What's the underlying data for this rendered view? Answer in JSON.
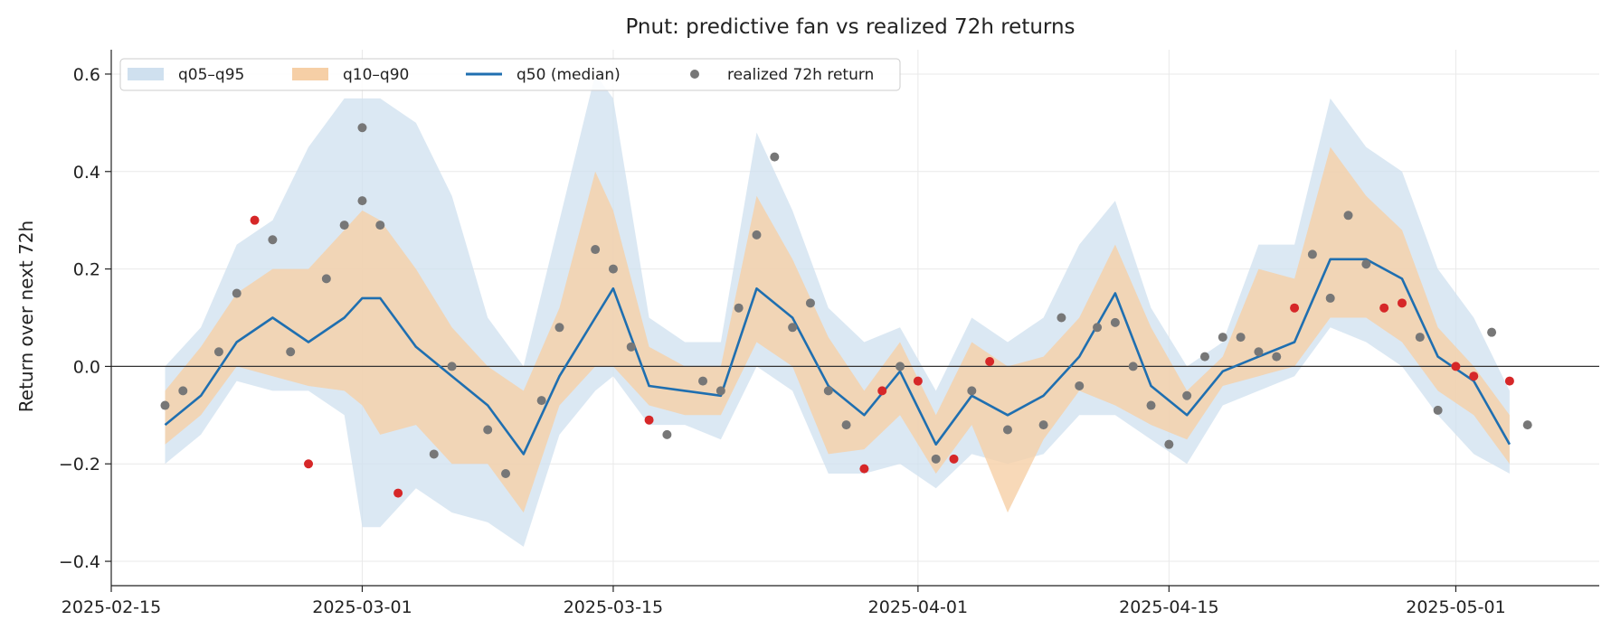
{
  "chart_data": {
    "type": "line",
    "title": "Pnut: predictive fan vs realized 72h returns",
    "xlabel": "",
    "ylabel": "Return over next 72h",
    "x_type": "date",
    "xlim": [
      "2025-02-15",
      "2025-05-09"
    ],
    "ylim": [
      -0.45,
      0.65
    ],
    "x_ticks": [
      "2025-02-15",
      "2025-03-01",
      "2025-03-15",
      "2025-04-01",
      "2025-04-15",
      "2025-05-01"
    ],
    "y_ticks": [
      -0.4,
      -0.2,
      0.0,
      0.2,
      0.4,
      0.6
    ],
    "y_tick_labels": [
      "−0.4",
      "−0.2",
      "0.0",
      "0.2",
      "0.4",
      "0.6"
    ],
    "grid": true,
    "zero_line": true,
    "legend": {
      "placement": "top-left",
      "entries": [
        {
          "label": "q05–q95",
          "kind": "band",
          "color": "#cfe0ef"
        },
        {
          "label": "q10–q90",
          "kind": "band",
          "color": "#f6cfa6"
        },
        {
          "label": "q50 (median)",
          "kind": "line",
          "color": "#1f6fb0"
        },
        {
          "label": "realized 72h return",
          "kind": "point",
          "color": "#777777"
        }
      ]
    },
    "colors": {
      "band_outer": "#cfe0ef",
      "band_inner": "#f6cfa6",
      "median": "#1f6fb0",
      "realized_inside": "#777777",
      "realized_outside": "#d62728"
    },
    "x": [
      "2025-02-18",
      "2025-02-20",
      "2025-02-22",
      "2025-02-24",
      "2025-02-26",
      "2025-02-28",
      "2025-03-01",
      "2025-03-02",
      "2025-03-04",
      "2025-03-06",
      "2025-03-08",
      "2025-03-10",
      "2025-03-12",
      "2025-03-14",
      "2025-03-15",
      "2025-03-17",
      "2025-03-19",
      "2025-03-21",
      "2025-03-23",
      "2025-03-25",
      "2025-03-27",
      "2025-03-29",
      "2025-03-31",
      "2025-04-02",
      "2025-04-04",
      "2025-04-06",
      "2025-04-08",
      "2025-04-10",
      "2025-04-12",
      "2025-04-14",
      "2025-04-16",
      "2025-04-18",
      "2025-04-20",
      "2025-04-22",
      "2025-04-24",
      "2025-04-26",
      "2025-04-28",
      "2025-04-30",
      "2025-05-02",
      "2025-05-04"
    ],
    "series": [
      {
        "name": "q05–q95",
        "lower": [
          -0.2,
          -0.14,
          -0.03,
          -0.05,
          -0.05,
          -0.1,
          -0.33,
          -0.33,
          -0.25,
          -0.3,
          -0.32,
          -0.37,
          -0.14,
          -0.05,
          -0.02,
          -0.12,
          -0.12,
          -0.15,
          0.0,
          -0.05,
          -0.22,
          -0.22,
          -0.2,
          -0.25,
          -0.18,
          -0.2,
          -0.18,
          -0.1,
          -0.1,
          -0.15,
          -0.2,
          -0.08,
          -0.05,
          -0.02,
          0.08,
          0.05,
          0.0,
          -0.1,
          -0.18,
          -0.22
        ],
        "upper": [
          0.0,
          0.08,
          0.25,
          0.3,
          0.45,
          0.55,
          0.55,
          0.55,
          0.5,
          0.35,
          0.1,
          0.0,
          0.3,
          0.6,
          0.55,
          0.1,
          0.05,
          0.05,
          0.48,
          0.32,
          0.12,
          0.05,
          0.08,
          -0.05,
          0.1,
          0.05,
          0.1,
          0.25,
          0.34,
          0.12,
          0.0,
          0.05,
          0.25,
          0.25,
          0.55,
          0.45,
          0.4,
          0.2,
          0.1,
          -0.05
        ]
      },
      {
        "name": "q10–q90",
        "lower": [
          -0.16,
          -0.1,
          0.0,
          -0.02,
          -0.04,
          -0.05,
          -0.08,
          -0.14,
          -0.12,
          -0.2,
          -0.2,
          -0.3,
          -0.08,
          0.0,
          0.0,
          -0.08,
          -0.1,
          -0.1,
          0.05,
          0.0,
          -0.18,
          -0.17,
          -0.1,
          -0.22,
          -0.12,
          -0.3,
          -0.15,
          -0.05,
          -0.08,
          -0.12,
          -0.15,
          -0.04,
          -0.02,
          0.0,
          0.1,
          0.1,
          0.05,
          -0.05,
          -0.1,
          -0.2
        ],
        "upper": [
          -0.05,
          0.04,
          0.15,
          0.2,
          0.2,
          0.28,
          0.32,
          0.3,
          0.2,
          0.08,
          0.0,
          -0.05,
          0.12,
          0.4,
          0.32,
          0.04,
          0.0,
          0.0,
          0.35,
          0.22,
          0.06,
          -0.05,
          0.05,
          -0.1,
          0.05,
          0.0,
          0.02,
          0.1,
          0.25,
          0.08,
          -0.05,
          0.02,
          0.2,
          0.18,
          0.45,
          0.35,
          0.28,
          0.08,
          0.0,
          -0.1
        ]
      },
      {
        "name": "q50 (median)",
        "values": [
          -0.12,
          -0.06,
          0.05,
          0.1,
          0.05,
          0.1,
          0.14,
          0.14,
          0.04,
          -0.02,
          -0.08,
          -0.18,
          -0.02,
          0.1,
          0.16,
          -0.04,
          -0.05,
          -0.06,
          0.16,
          0.1,
          -0.04,
          -0.1,
          -0.01,
          -0.16,
          -0.06,
          -0.1,
          -0.06,
          0.02,
          0.15,
          -0.04,
          -0.1,
          -0.01,
          0.02,
          0.05,
          0.22,
          0.22,
          0.18,
          0.02,
          -0.03,
          -0.16
        ]
      },
      {
        "name": "realized 72h return",
        "points": [
          {
            "x": "2025-02-18",
            "y": -0.08,
            "outside": false
          },
          {
            "x": "2025-02-19",
            "y": -0.05,
            "outside": false
          },
          {
            "x": "2025-02-21",
            "y": 0.03,
            "outside": false
          },
          {
            "x": "2025-02-22",
            "y": 0.15,
            "outside": false
          },
          {
            "x": "2025-02-23",
            "y": 0.3,
            "outside": true
          },
          {
            "x": "2025-02-24",
            "y": 0.26,
            "outside": false
          },
          {
            "x": "2025-02-25",
            "y": 0.03,
            "outside": false
          },
          {
            "x": "2025-02-26",
            "y": -0.2,
            "outside": true
          },
          {
            "x": "2025-02-27",
            "y": 0.18,
            "outside": false
          },
          {
            "x": "2025-02-28",
            "y": 0.29,
            "outside": false
          },
          {
            "x": "2025-02-29",
            "y": 0.49,
            "outside": false
          },
          {
            "x": "2025-03-01",
            "y": 0.34,
            "outside": false
          },
          {
            "x": "2025-03-02",
            "y": 0.29,
            "outside": false
          },
          {
            "x": "2025-03-03",
            "y": -0.26,
            "outside": true
          },
          {
            "x": "2025-03-05",
            "y": -0.18,
            "outside": false
          },
          {
            "x": "2025-03-06",
            "y": 0.0,
            "outside": false
          },
          {
            "x": "2025-03-08",
            "y": -0.13,
            "outside": false
          },
          {
            "x": "2025-03-09",
            "y": -0.22,
            "outside": false
          },
          {
            "x": "2025-03-11",
            "y": -0.07,
            "outside": false
          },
          {
            "x": "2025-03-12",
            "y": 0.08,
            "outside": false
          },
          {
            "x": "2025-03-14",
            "y": 0.24,
            "outside": false
          },
          {
            "x": "2025-03-15",
            "y": 0.2,
            "outside": false
          },
          {
            "x": "2025-03-16",
            "y": 0.04,
            "outside": false
          },
          {
            "x": "2025-03-17",
            "y": -0.11,
            "outside": true
          },
          {
            "x": "2025-03-18",
            "y": -0.14,
            "outside": false
          },
          {
            "x": "2025-03-20",
            "y": -0.03,
            "outside": false
          },
          {
            "x": "2025-03-21",
            "y": -0.05,
            "outside": false
          },
          {
            "x": "2025-03-22",
            "y": 0.12,
            "outside": false
          },
          {
            "x": "2025-03-23",
            "y": 0.27,
            "outside": false
          },
          {
            "x": "2025-03-24",
            "y": 0.43,
            "outside": false
          },
          {
            "x": "2025-03-25",
            "y": 0.08,
            "outside": false
          },
          {
            "x": "2025-03-26",
            "y": 0.13,
            "outside": false
          },
          {
            "x": "2025-03-27",
            "y": -0.05,
            "outside": false
          },
          {
            "x": "2025-03-28",
            "y": -0.12,
            "outside": false
          },
          {
            "x": "2025-03-29",
            "y": -0.21,
            "outside": true
          },
          {
            "x": "2025-03-30",
            "y": -0.05,
            "outside": true
          },
          {
            "x": "2025-03-31",
            "y": 0.0,
            "outside": false
          },
          {
            "x": "2025-04-01",
            "y": -0.03,
            "outside": true
          },
          {
            "x": "2025-04-02",
            "y": -0.19,
            "outside": false
          },
          {
            "x": "2025-04-03",
            "y": -0.19,
            "outside": true
          },
          {
            "x": "2025-04-04",
            "y": -0.05,
            "outside": false
          },
          {
            "x": "2025-04-05",
            "y": 0.01,
            "outside": true
          },
          {
            "x": "2025-04-06",
            "y": -0.13,
            "outside": false
          },
          {
            "x": "2025-04-08",
            "y": -0.12,
            "outside": false
          },
          {
            "x": "2025-04-09",
            "y": 0.1,
            "outside": false
          },
          {
            "x": "2025-04-10",
            "y": -0.04,
            "outside": false
          },
          {
            "x": "2025-04-11",
            "y": 0.08,
            "outside": false
          },
          {
            "x": "2025-04-12",
            "y": 0.09,
            "outside": false
          },
          {
            "x": "2025-04-13",
            "y": 0.0,
            "outside": false
          },
          {
            "x": "2025-04-14",
            "y": -0.08,
            "outside": false
          },
          {
            "x": "2025-04-15",
            "y": -0.16,
            "outside": false
          },
          {
            "x": "2025-04-16",
            "y": -0.06,
            "outside": false
          },
          {
            "x": "2025-04-17",
            "y": 0.02,
            "outside": false
          },
          {
            "x": "2025-04-18",
            "y": 0.06,
            "outside": false
          },
          {
            "x": "2025-04-19",
            "y": 0.06,
            "outside": false
          },
          {
            "x": "2025-04-20",
            "y": 0.03,
            "outside": false
          },
          {
            "x": "2025-04-21",
            "y": 0.02,
            "outside": false
          },
          {
            "x": "2025-04-22",
            "y": 0.12,
            "outside": true
          },
          {
            "x": "2025-04-23",
            "y": 0.23,
            "outside": false
          },
          {
            "x": "2025-04-24",
            "y": 0.14,
            "outside": false
          },
          {
            "x": "2025-04-25",
            "y": 0.31,
            "outside": false
          },
          {
            "x": "2025-04-26",
            "y": 0.21,
            "outside": false
          },
          {
            "x": "2025-04-27",
            "y": 0.12,
            "outside": true
          },
          {
            "x": "2025-04-28",
            "y": 0.13,
            "outside": true
          },
          {
            "x": "2025-04-29",
            "y": 0.06,
            "outside": false
          },
          {
            "x": "2025-04-30",
            "y": -0.09,
            "outside": false
          },
          {
            "x": "2025-05-01",
            "y": 0.0,
            "outside": true
          },
          {
            "x": "2025-05-02",
            "y": -0.02,
            "outside": true
          },
          {
            "x": "2025-05-03",
            "y": 0.07,
            "outside": false
          },
          {
            "x": "2025-05-04",
            "y": -0.03,
            "outside": true
          },
          {
            "x": "2025-05-05",
            "y": -0.12,
            "outside": false
          }
        ]
      }
    ]
  }
}
